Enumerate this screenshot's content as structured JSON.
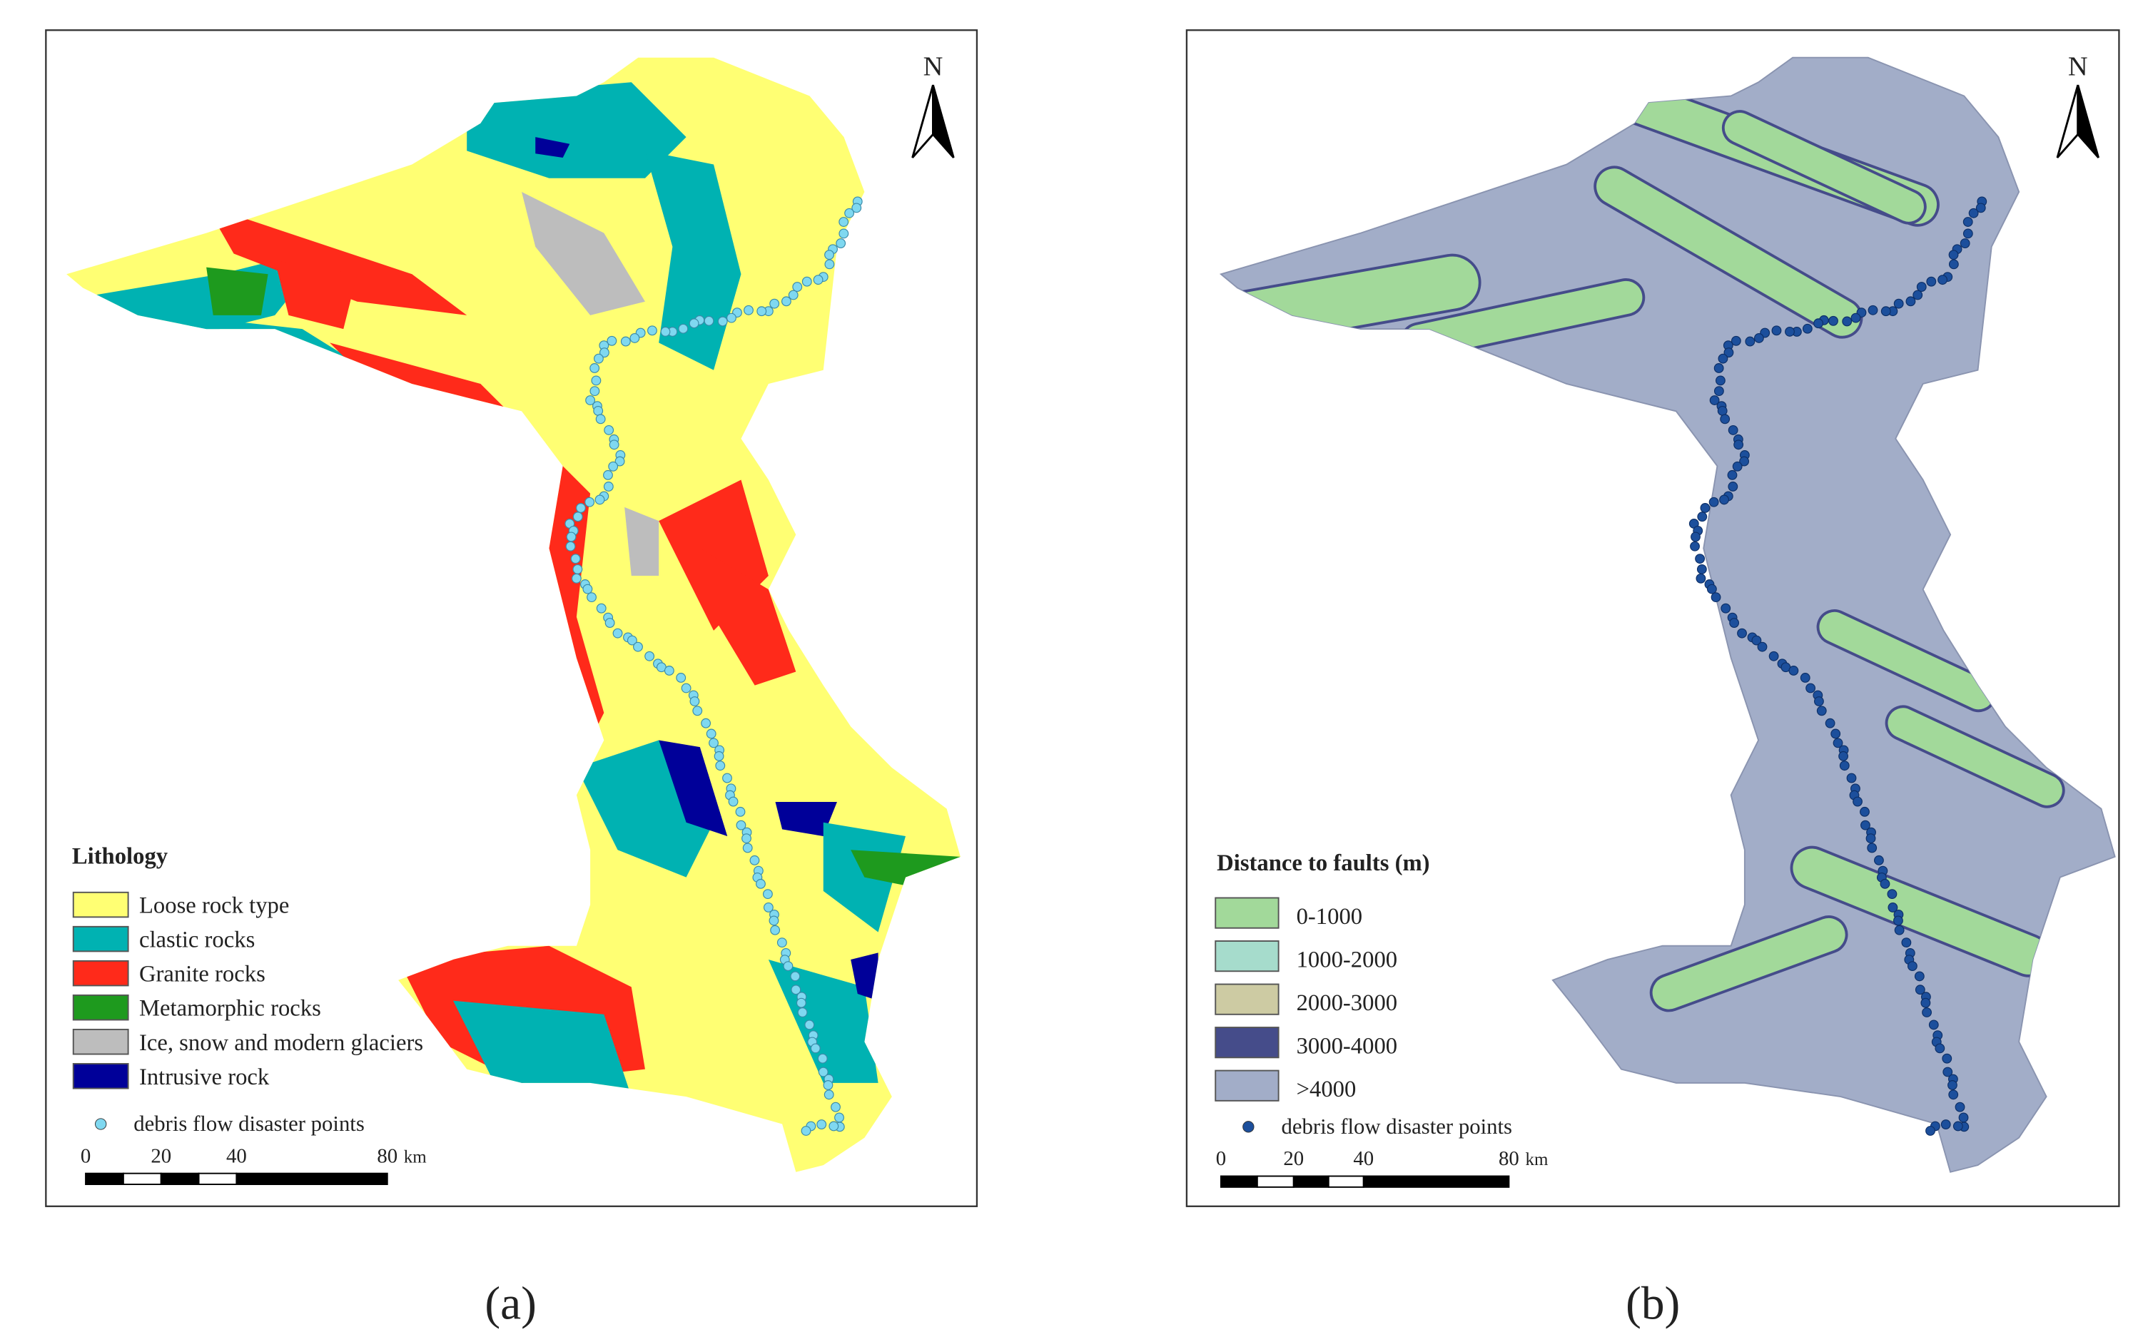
{
  "panels": [
    {
      "label": "(a)",
      "north": "N",
      "legend": {
        "title": "Lithology",
        "items": [
          {
            "label": "Loose rock type",
            "color": "#ffff73"
          },
          {
            "label": "clastic rocks",
            "color": "#00b2b2"
          },
          {
            "label": "Granite rocks",
            "color": "#ff2a1a"
          },
          {
            "label": "Metamorphic rocks",
            "color": "#1e9a1e"
          },
          {
            "label": "Ice, snow and modern glaciers",
            "color": "#bdbdbd"
          },
          {
            "label": "Intrusive rock",
            "color": "#000099"
          }
        ],
        "points_label": "debris flow disaster points",
        "points_color": "#7fd8f0"
      },
      "scale": {
        "ticks": [
          "0",
          "20",
          "40",
          "80"
        ],
        "unit": "km"
      }
    },
    {
      "label": "(b)",
      "north": "N",
      "legend": {
        "title": "Distance to faults (m)",
        "items": [
          {
            "label": "0-1000",
            "color": "#a2d99a"
          },
          {
            "label": "1000-2000",
            "color": "#a6dccc"
          },
          {
            "label": "2000-3000",
            "color": "#cdcba3"
          },
          {
            "label": "3000-4000",
            "color": "#454c8a"
          },
          {
            "label": ">4000",
            "color": "#a2adc8"
          }
        ],
        "points_label": "debris flow disaster points",
        "points_color": "#1c4f9c"
      },
      "scale": {
        "ticks": [
          "0",
          "20",
          "40",
          "80"
        ],
        "unit": "km"
      }
    }
  ]
}
